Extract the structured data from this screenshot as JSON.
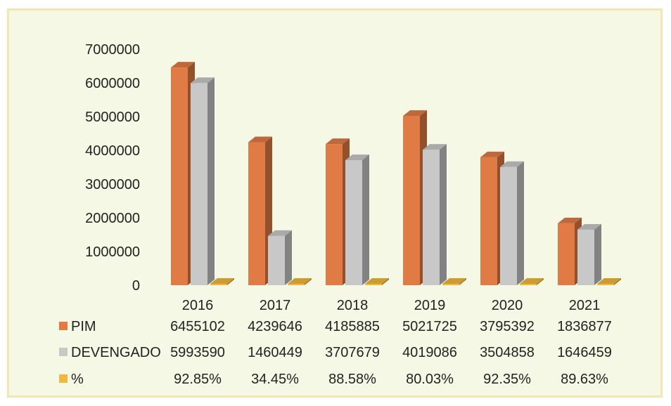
{
  "chart_data": {
    "type": "bar",
    "categories": [
      "2016",
      "2017",
      "2018",
      "2019",
      "2020",
      "2021"
    ],
    "series": [
      {
        "name": "PIM",
        "values": [
          6455102,
          4239646,
          4185885,
          5021725,
          3795392,
          1836877
        ],
        "color": "#e07b45"
      },
      {
        "name": "DEVENGADO",
        "values": [
          5993590,
          1460449,
          3707679,
          4019086,
          3504858,
          1646459
        ],
        "color": "#c8c8c8"
      },
      {
        "name": "%",
        "values": [
          92.85,
          34.45,
          88.58,
          80.03,
          92.35,
          89.63
        ],
        "color": "#f0b83c"
      }
    ],
    "table_rows": [
      {
        "label": "PIM",
        "cells": [
          "6455102",
          "4239646",
          "4185885",
          "5021725",
          "3795392",
          "1836877"
        ]
      },
      {
        "label": "DEVENGADO",
        "cells": [
          "5993590",
          "1460449",
          "3707679",
          "4019086",
          "3504858",
          "1646459"
        ]
      },
      {
        "label": "%",
        "cells": [
          "92.85%",
          "34.45%",
          "88.58%",
          "80.03%",
          "92.35%",
          "89.63%"
        ]
      }
    ],
    "yticks": [
      "0",
      "1000000",
      "2000000",
      "3000000",
      "4000000",
      "5000000",
      "6000000",
      "7000000"
    ],
    "ylim": [
      0,
      7000000
    ],
    "style": "3d-clustered-column-with-data-table",
    "legend": "data-table-rows"
  }
}
